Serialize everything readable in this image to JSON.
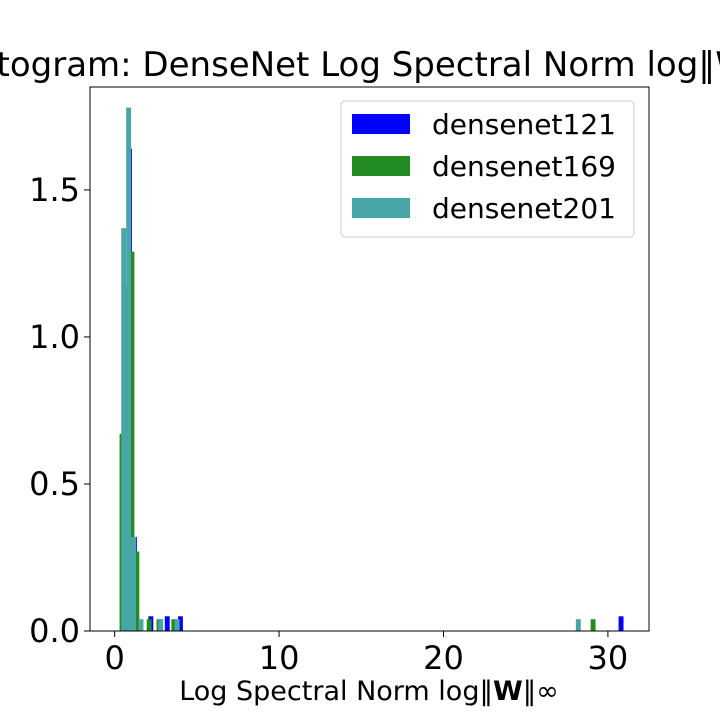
{
  "chart_data": {
    "type": "bar",
    "title": "Histogram: DenseNet Log Spectral Norm log‖W‖∞",
    "xlabel": "Log Spectral Norm log‖W‖∞",
    "xlabel_parts": {
      "pre": "Log Spectral Norm log‖",
      "bold": "W",
      "post": "‖∞"
    },
    "ylabel": "",
    "xlim": [
      -1.5,
      32.5
    ],
    "ylim": [
      0,
      1.85
    ],
    "xticks": [
      0,
      10,
      20,
      30
    ],
    "yticks": [
      0.0,
      0.5,
      1.0,
      1.5
    ],
    "ytick_labels": [
      "0.0",
      "0.5",
      "1.0",
      "1.5"
    ],
    "grid": false,
    "legend_position": "top-right",
    "series": [
      {
        "name": "densenet121",
        "color": "#0000ff",
        "bin_width": 0.3,
        "x": [
          0.6,
          0.9,
          1.2,
          2.2,
          3.2,
          4.0,
          30.8
        ],
        "values": [
          0.68,
          1.64,
          0.32,
          0.05,
          0.05,
          0.05,
          0.05
        ]
      },
      {
        "name": "densenet169",
        "color": "#228b22",
        "bin_width": 0.3,
        "x": [
          0.45,
          0.75,
          1.05,
          1.35,
          2.1,
          2.7,
          3.6,
          29.1
        ],
        "values": [
          0.67,
          1.17,
          1.29,
          0.27,
          0.04,
          0.04,
          0.04,
          0.04
        ]
      },
      {
        "name": "densenet201",
        "color": "#48a6a6",
        "bin_width": 0.3,
        "x": [
          0.55,
          0.85,
          1.15,
          1.6,
          2.8,
          3.8,
          28.2
        ],
        "values": [
          1.37,
          1.78,
          0.32,
          0.04,
          0.04,
          0.04,
          0.04
        ]
      }
    ]
  }
}
